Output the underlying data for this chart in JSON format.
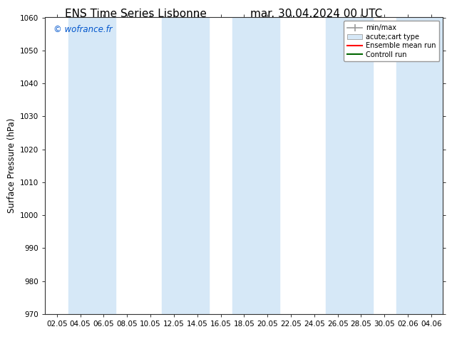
{
  "title_left": "ENS Time Series Lisbonne",
  "title_right": "mar. 30.04.2024 00 UTC",
  "ylabel": "Surface Pressure (hPa)",
  "ylim": [
    970,
    1060
  ],
  "yticks": [
    970,
    980,
    990,
    1000,
    1010,
    1020,
    1030,
    1040,
    1050,
    1060
  ],
  "xtick_labels": [
    "02.05",
    "04.05",
    "06.05",
    "08.05",
    "10.05",
    "12.05",
    "14.05",
    "16.05",
    "18.05",
    "20.05",
    "22.05",
    "24.05",
    "26.05",
    "28.05",
    "30.05",
    "02.06",
    "04.06"
  ],
  "watermark": "© wofrance.fr",
  "watermark_color": "#0055cc",
  "band_color": "#d6e8f7",
  "legend_entries": [
    "min/max",
    "acute;cart type",
    "Ensemble mean run",
    "Controll run"
  ],
  "background_color": "#ffffff",
  "title_fontsize": 11,
  "tick_fontsize": 7.5,
  "ylabel_fontsize": 8.5
}
